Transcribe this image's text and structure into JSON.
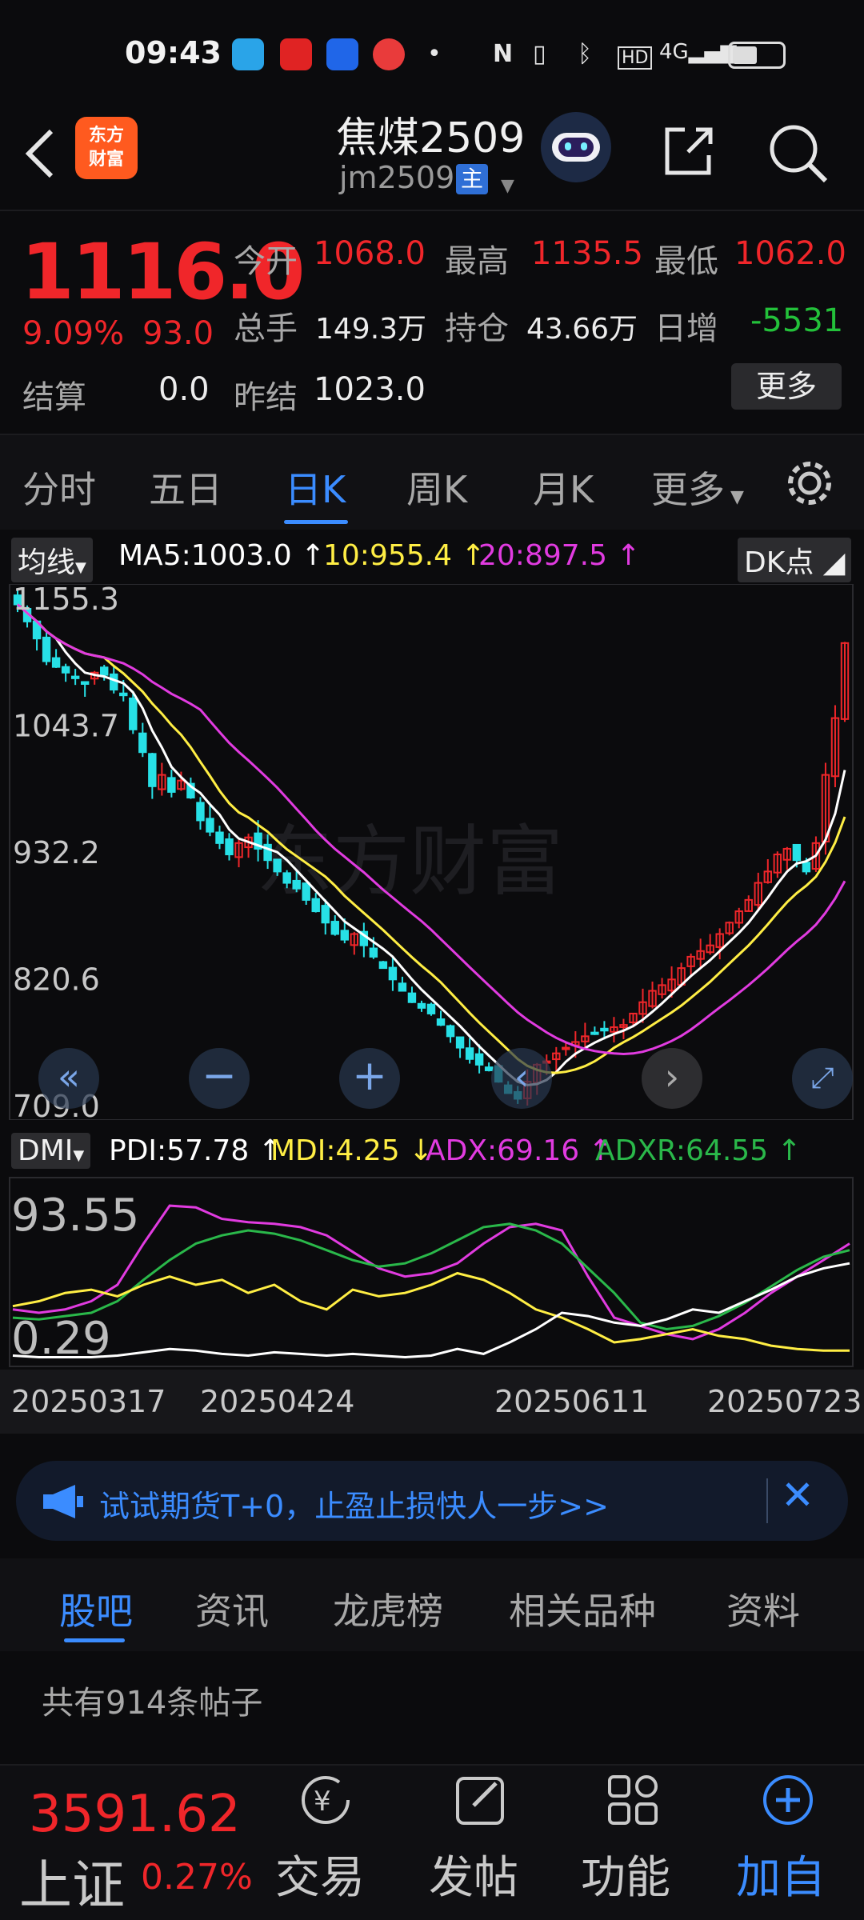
{
  "status_bar": {
    "time": "09:43",
    "icons": [
      "telegram-icon",
      "app-icon",
      "app-icon",
      "weibo-icon",
      "dot-icon",
      "nfc-icon",
      "vibrate-icon",
      "bluetooth-icon",
      "hd-icon",
      "signal-4g-icon",
      "battery-icon"
    ]
  },
  "header": {
    "title": "焦煤2509",
    "code": "jm2509",
    "tag": "主",
    "logo": {
      "line1": "东方",
      "line2": "财富"
    }
  },
  "quote": {
    "price": "1116.0",
    "change_pct": "9.09%",
    "change": "93.0",
    "settle_label": "结算",
    "settle_value": "0.0",
    "open_label": "今开",
    "open_value": "1068.0",
    "high_label": "最高",
    "high_value": "1135.5",
    "low_label": "最低",
    "low_value": "1062.0",
    "volume_label": "总手",
    "volume_value": "149.3万",
    "oi_label": "持仓",
    "oi_value": "43.66万",
    "daily_label": "日增",
    "daily_value": "-5531",
    "prev_label": "昨结",
    "prev_value": "1023.0",
    "more_label": "更多"
  },
  "tabs": [
    {
      "label": "分时"
    },
    {
      "label": "五日"
    },
    {
      "label": "日K"
    },
    {
      "label": "周K"
    },
    {
      "label": "月K"
    },
    {
      "label": "更多"
    }
  ],
  "ma_legend": {
    "selector": "均线",
    "ma5": "MA5:1003.0",
    "ma10": "10:955.4",
    "ma20": "20:897.5",
    "dk": "DK点"
  },
  "price_axis": [
    "1155.3",
    "1043.7",
    "932.2",
    "820.6",
    "709.0"
  ],
  "dmi_legend": {
    "selector": "DMI",
    "pdi": "PDI:57.78",
    "mdi": "MDI:4.25",
    "adx": "ADX:69.16",
    "adxr": "ADXR:64.55"
  },
  "dmi_axis": [
    "93.55",
    "0.29"
  ],
  "dates": [
    "20250317",
    "20250424",
    "20250611",
    "20250723"
  ],
  "watermark": "东方财富",
  "banner": {
    "text": "试试期货T+0，止盈止损快人一步>>"
  },
  "subtabs": [
    {
      "label": "股吧"
    },
    {
      "label": "资讯"
    },
    {
      "label": "龙虎榜"
    },
    {
      "label": "相关品种"
    },
    {
      "label": "资料"
    }
  ],
  "posts": "共有914条帖子",
  "bottom": {
    "index_value": "3591.62",
    "index_name": "上证",
    "index_pct": "0.27%",
    "trade": "交易",
    "post": "发帖",
    "func": "功能",
    "add": "加自"
  },
  "colors": {
    "up": "#f0262a",
    "down": "#27e0e6",
    "ma5": "#ffffff",
    "ma10": "#ffee44",
    "ma20": "#e13be0",
    "adxr": "#2ab84a",
    "accent": "#3b8cff"
  },
  "chart_data": [
    {
      "type": "candlestick",
      "title": "焦煤2509 日K",
      "x_start": "20250317",
      "x_end": "20250723",
      "ylim": [
        709.0,
        1155.3
      ],
      "close": [
        1150,
        1135,
        1120,
        1100,
        1095,
        1090,
        1085,
        1080,
        1090,
        1088,
        1075,
        1070,
        1040,
        1020,
        990,
        1000,
        985,
        995,
        980,
        960,
        950,
        940,
        930,
        940,
        945,
        935,
        925,
        915,
        905,
        900,
        890,
        880,
        870,
        860,
        855,
        860,
        850,
        840,
        830,
        820,
        810,
        800,
        795,
        790,
        780,
        770,
        760,
        750,
        745,
        740,
        730,
        720,
        715,
        730,
        745,
        748,
        755,
        760,
        765,
        770,
        772,
        775,
        778,
        780,
        790,
        800,
        810,
        815,
        820,
        830,
        840,
        845,
        850,
        860,
        870,
        880,
        890,
        905,
        915,
        930,
        935,
        925,
        915,
        940,
        1000,
        1050,
        1116
      ],
      "ma5": 1003.0,
      "ma10": 955.4,
      "ma20": 897.5
    },
    {
      "type": "line",
      "title": "DMI",
      "ylim": [
        0.29,
        93.55
      ],
      "series": [
        {
          "name": "PDI",
          "last": 57.78
        },
        {
          "name": "MDI",
          "last": 4.25
        },
        {
          "name": "ADX",
          "last": 69.16
        },
        {
          "name": "ADXR",
          "last": 64.55
        }
      ]
    }
  ]
}
